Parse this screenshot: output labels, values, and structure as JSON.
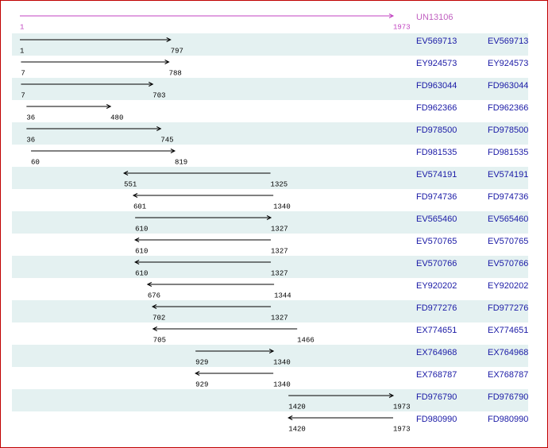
{
  "reference": {
    "id": "UN13106",
    "start": 1,
    "end": 1973
  },
  "rows": [
    {
      "id": "EV569713",
      "start": 1,
      "end": 797,
      "direction": "forward",
      "link": "EV569713"
    },
    {
      "id": "EY924573",
      "start": 7,
      "end": 788,
      "direction": "forward",
      "link": "EY924573"
    },
    {
      "id": "FD963044",
      "start": 7,
      "end": 703,
      "direction": "forward",
      "link": "FD963044"
    },
    {
      "id": "FD962366",
      "start": 36,
      "end": 480,
      "direction": "forward",
      "link": "FD962366"
    },
    {
      "id": "FD978500",
      "start": 36,
      "end": 745,
      "direction": "forward",
      "link": "FD978500"
    },
    {
      "id": "FD981535",
      "start": 60,
      "end": 819,
      "direction": "forward",
      "link": "FD981535"
    },
    {
      "id": "EV574191",
      "start": 551,
      "end": 1325,
      "direction": "reverse",
      "link": "EV574191"
    },
    {
      "id": "FD974736",
      "start": 601,
      "end": 1340,
      "direction": "reverse",
      "link": "FD974736"
    },
    {
      "id": "EV565460",
      "start": 610,
      "end": 1327,
      "direction": "forward",
      "link": "EV565460"
    },
    {
      "id": "EV570765",
      "start": 610,
      "end": 1327,
      "direction": "reverse",
      "link": "EV570765"
    },
    {
      "id": "EV570766",
      "start": 610,
      "end": 1327,
      "direction": "reverse",
      "link": "EV570766"
    },
    {
      "id": "EY920202",
      "start": 676,
      "end": 1344,
      "direction": "reverse",
      "link": "EY920202"
    },
    {
      "id": "FD977276",
      "start": 702,
      "end": 1327,
      "direction": "reverse",
      "link": "FD977276"
    },
    {
      "id": "EX774651",
      "start": 705,
      "end": 1466,
      "direction": "reverse",
      "link": "EX774651"
    },
    {
      "id": "EX764968",
      "start": 929,
      "end": 1340,
      "direction": "forward",
      "link": "EX764968"
    },
    {
      "id": "EX768787",
      "start": 929,
      "end": 1340,
      "direction": "reverse",
      "link": "EX768787"
    },
    {
      "id": "FD976790",
      "start": 1420,
      "end": 1973,
      "direction": "forward",
      "link": "FD976790"
    },
    {
      "id": "FD980990",
      "start": 1420,
      "end": 1973,
      "direction": "reverse",
      "link": "FD980990"
    }
  ]
}
